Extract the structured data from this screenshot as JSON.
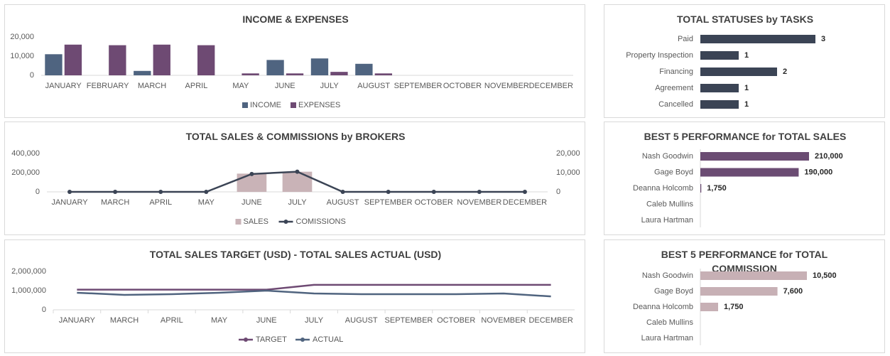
{
  "chart_data": [
    {
      "type": "bar",
      "title": "INCOME & EXPENSES",
      "categories": [
        "JANUARY",
        "FEBRUARY",
        "MARCH",
        "APRIL",
        "MAY",
        "JUNE",
        "JULY",
        "AUGUST",
        "SEPTEMBER",
        "OCTOBER",
        "NOVEMBER",
        "DECEMBER"
      ],
      "series": [
        {
          "name": "INCOME",
          "color": "#4f6480",
          "values": [
            11000,
            0,
            2300,
            0,
            0,
            8000,
            8800,
            6000,
            0,
            0,
            0,
            0
          ]
        },
        {
          "name": "EXPENSES",
          "color": "#6e4a73",
          "values": [
            16000,
            15700,
            16000,
            15700,
            1000,
            1000,
            1800,
            1000,
            0,
            0,
            0,
            0
          ]
        }
      ],
      "ylim": [
        0,
        20000
      ],
      "yticks": [
        0,
        {
          "value": 10000,
          "label": "10,000"
        },
        {
          "value": 20000,
          "label": "20,000"
        }
      ],
      "legend": "bottom"
    },
    {
      "type": "combo",
      "title": "TOTAL SALES & COMMISSIONS by BROKERS",
      "categories": [
        "JANUARY",
        "MARCH",
        "APRIL",
        "MAY",
        "JUNE",
        "JULY",
        "AUGUST",
        "SEPTEMBER",
        "OCTOBER",
        "NOVEMBER",
        "DECEMBER"
      ],
      "series": [
        {
          "name": "SALES",
          "type": "bar",
          "color": "#c9b3b7",
          "values": [
            0,
            0,
            0,
            0,
            190000,
            210000,
            0,
            0,
            0,
            0,
            0
          ]
        },
        {
          "name": "COMISSIONS",
          "type": "line",
          "axis": "y2",
          "markers": true,
          "color": "#3b4455",
          "values": [
            0,
            0,
            0,
            0,
            9300,
            10500,
            0,
            0,
            0,
            0,
            0
          ]
        }
      ],
      "ylim": [
        0,
        400000
      ],
      "yticks": [
        0,
        {
          "value": 200000,
          "label": "200,000"
        },
        {
          "value": 400000,
          "label": "400,000"
        }
      ],
      "y2lim": [
        0,
        20000
      ],
      "y2ticks": [
        0,
        {
          "value": 10000,
          "label": "10,000"
        },
        {
          "value": 20000,
          "label": "20,000"
        }
      ],
      "legend": "bottom"
    },
    {
      "type": "line",
      "title": "TOTAL SALES TARGET (USD) - TOTAL SALES ACTUAL (USD)",
      "categories": [
        "JANUARY",
        "MARCH",
        "APRIL",
        "MAY",
        "JUNE",
        "JULY",
        "AUGUST",
        "SEPTEMBER",
        "OCTOBER",
        "NOVEMBER",
        "DECEMBER"
      ],
      "series": [
        {
          "name": "TARGET",
          "color": "#6e4a73",
          "values": [
            1050000,
            1050000,
            1050000,
            1050000,
            1050000,
            1300000,
            1300000,
            1300000,
            1300000,
            1300000,
            1300000
          ]
        },
        {
          "name": "ACTUAL",
          "color": "#50647f",
          "values": [
            890000,
            780000,
            815000,
            890000,
            1000000,
            850000,
            815000,
            815000,
            815000,
            850000,
            700000
          ]
        }
      ],
      "ylim": [
        0,
        2000000
      ],
      "yticks": [
        0,
        {
          "value": 1000000,
          "label": "1,000,000"
        },
        {
          "value": 2000000,
          "label": "2,000,000"
        }
      ],
      "legend": "bottom"
    },
    {
      "type": "hbar",
      "title": "TOTAL STATUSES by TASKS",
      "color": "#3b4455",
      "categories": [
        "Paid",
        "Property Inspection",
        "Financing",
        "Agreement",
        "Cancelled"
      ],
      "values": [
        3,
        1,
        2,
        1,
        1
      ]
    },
    {
      "type": "hbar",
      "title": "BEST 5 PERFORMANCE for TOTAL SALES",
      "color": "#6b4c73",
      "categories": [
        "Nash Goodwin",
        "Gage Boyd",
        "Deanna Holcomb",
        "Caleb Mullins",
        "Laura Hartman"
      ],
      "values": [
        210000,
        190000,
        1750,
        null,
        null
      ],
      "value_labels": [
        "210,000",
        "190,000",
        "1,750",
        null,
        null
      ]
    },
    {
      "type": "hbar",
      "title": "BEST 5 PERFORMANCE for TOTAL COMMISSION",
      "color": "#c7b0b5",
      "categories": [
        "Nash Goodwin",
        "Gage Boyd",
        "Deanna Holcomb",
        "Caleb Mullins",
        "Laura Hartman"
      ],
      "values": [
        10500,
        7600,
        1750,
        null,
        null
      ],
      "value_labels": [
        "10,500",
        "7,600",
        "1,750",
        null,
        null
      ]
    }
  ]
}
